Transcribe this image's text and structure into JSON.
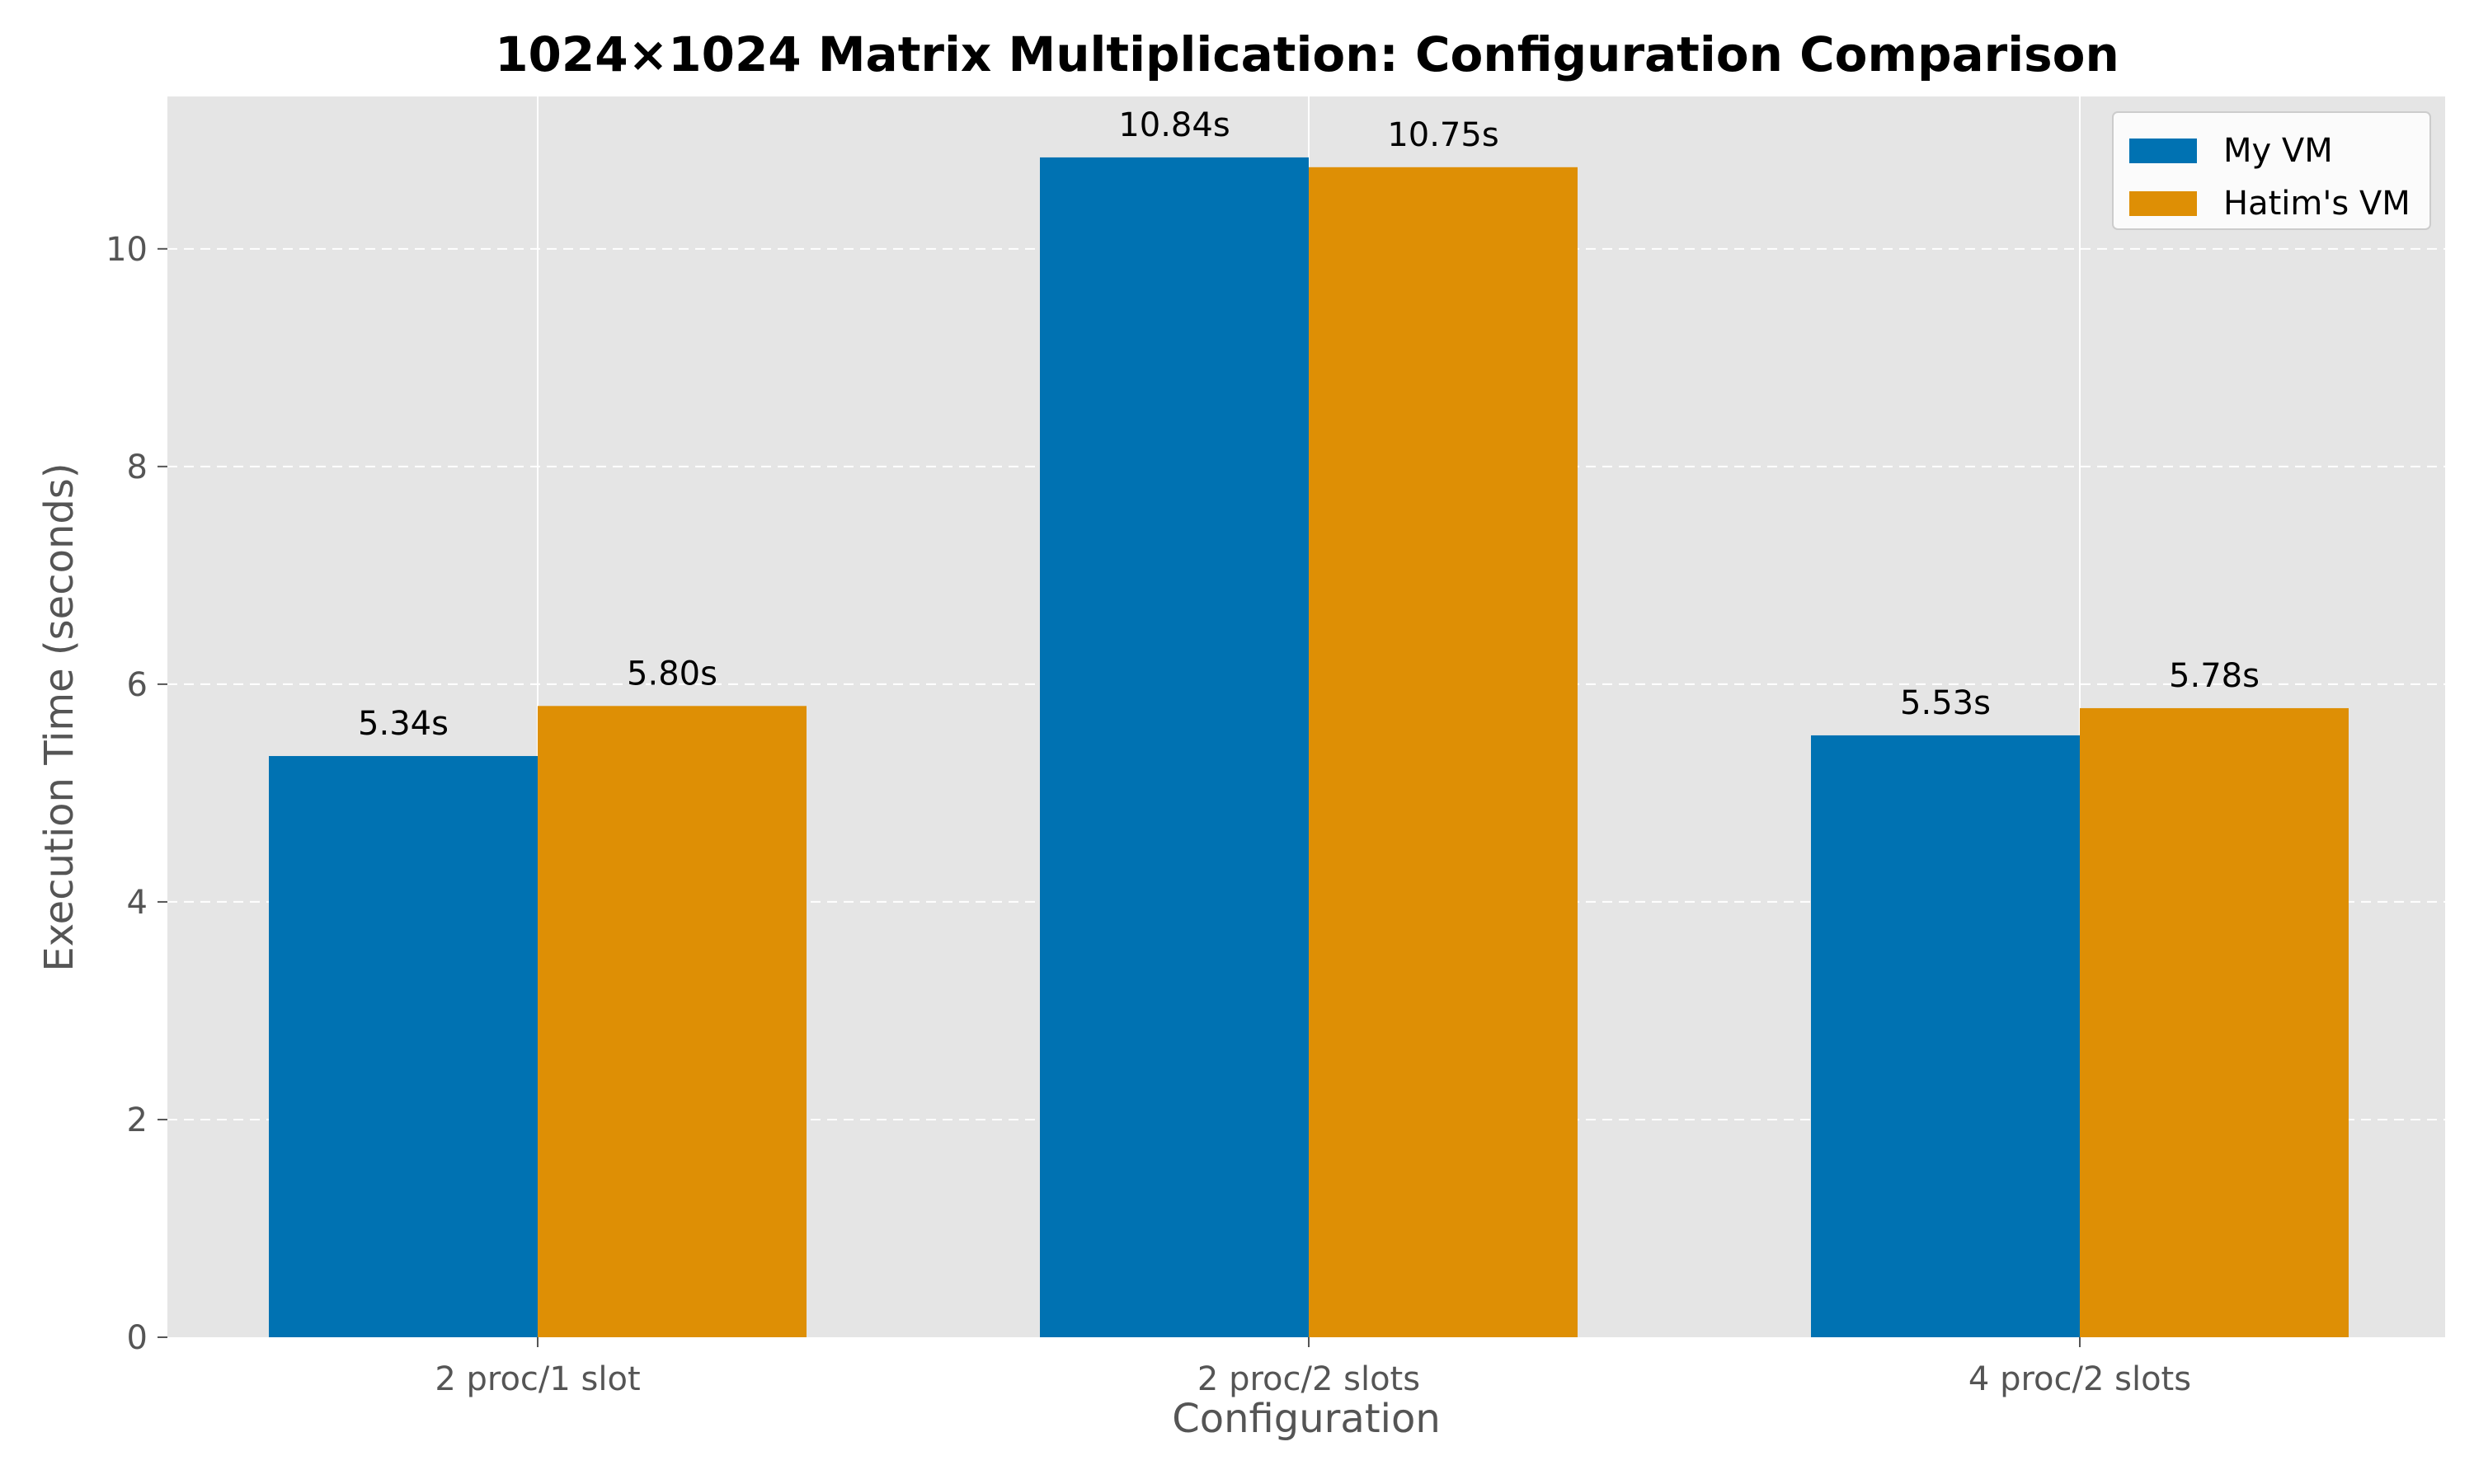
{
  "chart_data": {
    "type": "bar",
    "title": "1024×1024 Matrix Multiplication: Configuration Comparison",
    "xlabel": "Configuration",
    "ylabel": "Execution Time (seconds)",
    "categories": [
      "2 proc/1 slot",
      "2 proc/2 slots",
      "4 proc/2 slots"
    ],
    "series": [
      {
        "name": "My VM",
        "color": "#0072b2",
        "values": [
          5.34,
          10.84,
          5.53
        ],
        "labels": [
          "5.34s",
          "10.84s",
          "5.53s"
        ]
      },
      {
        "name": "Hatim's VM",
        "color": "#de8f05",
        "values": [
          5.8,
          10.75,
          5.78
        ],
        "labels": [
          "5.80s",
          "10.75s",
          "5.78s"
        ]
      }
    ],
    "yticks": [
      0,
      2,
      4,
      6,
      8,
      10
    ],
    "ylim": [
      0,
      11.4
    ],
    "grid": true,
    "legend_position": "top-right",
    "background_color": "#e5e5e5"
  }
}
